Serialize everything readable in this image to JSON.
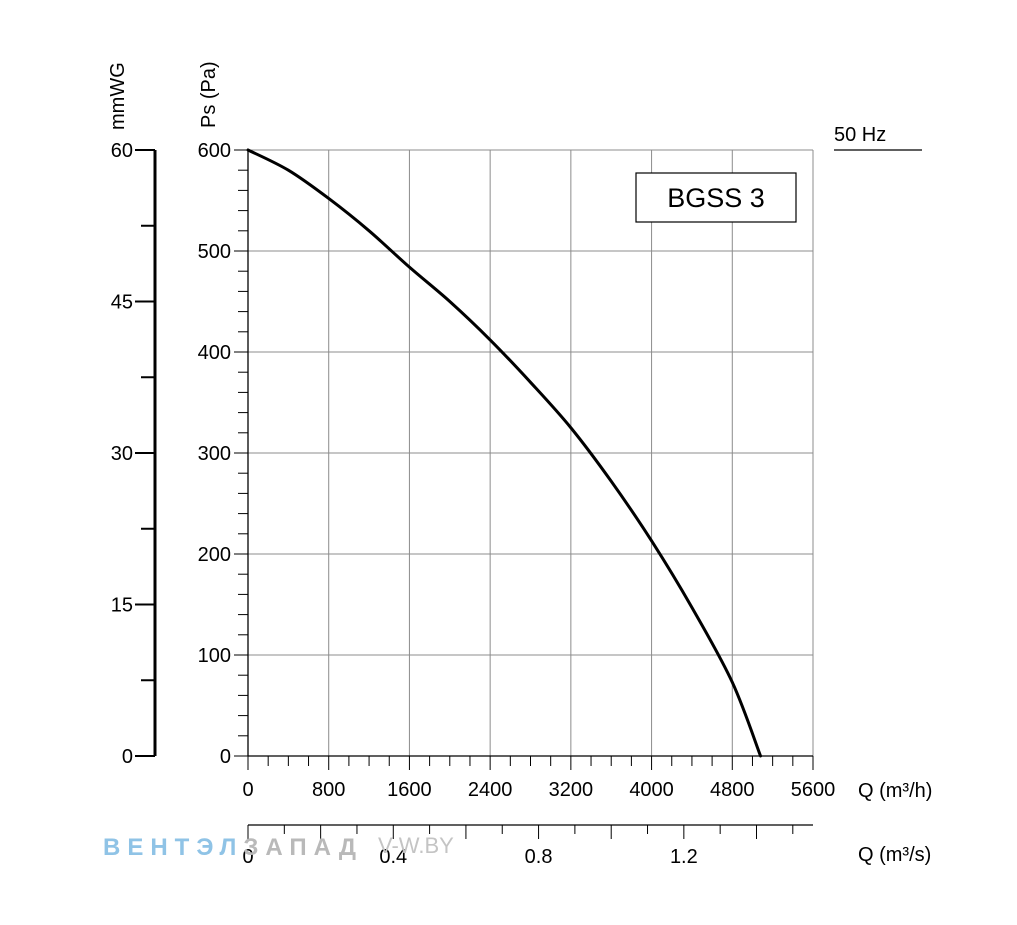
{
  "chart_data": {
    "type": "line",
    "series_label": "BGSS 3",
    "frequency_label": "50 Hz",
    "x": [
      0,
      400,
      800,
      1200,
      1600,
      2000,
      2400,
      2800,
      3200,
      3600,
      4000,
      4400,
      4800,
      5080
    ],
    "y": [
      600,
      580,
      552,
      520,
      484,
      450,
      412,
      370,
      325,
      272,
      213,
      147,
      73,
      0
    ],
    "xlabel": "Q (m³/h)",
    "ylabel": "Ps (Pa)",
    "xlim": [
      0,
      5600
    ],
    "ylim": [
      0,
      600
    ],
    "x_ticks": [
      "0",
      "800",
      "1600",
      "2400",
      "3200",
      "4000",
      "4800",
      "5600"
    ],
    "y_ticks": [
      "0",
      "100",
      "200",
      "300",
      "400",
      "500",
      "600"
    ],
    "grid": true,
    "secondary_y": {
      "label": "mmWG",
      "ticks": [
        "0",
        "15",
        "30",
        "45",
        "60"
      ],
      "lim": [
        0,
        60
      ]
    },
    "secondary_x": {
      "label": "Q (m³/s)",
      "ticks": [
        "0",
        "0.4",
        "0.8",
        "1.2"
      ],
      "lim": [
        0,
        1.5556
      ]
    }
  },
  "watermark": {
    "part1": "ВЕНТЭЛ",
    "part2": "ЗАПАД",
    "url": "V-W.BY"
  },
  "colors": {
    "curve": "#000000",
    "grid": "#8c8c8c",
    "watermark_blue": "#8fc3e6",
    "watermark_gray": "#b9b9b9"
  }
}
